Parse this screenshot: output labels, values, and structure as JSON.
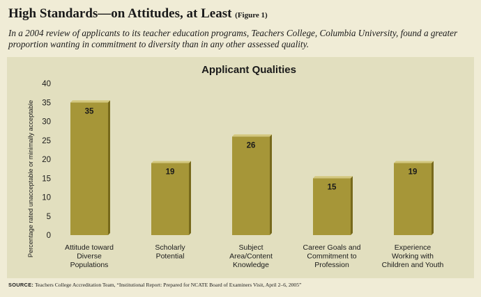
{
  "header": {
    "title": "High Standards—on Attitudes, at Least",
    "figure_label": "(Figure 1)",
    "subtitle": "In a 2004 review of applicants to its teacher education programs, Teachers College, Columbia University, found a greater proportion wanting in commitment to diversity than in any other assessed quality."
  },
  "footer": {
    "source_label": "SOURCE:",
    "source_text": "Teachers College Accreditation Team, “Institutional Report: Prepared for NCATE Board of Examiners Visit, April 2–6, 2005”"
  },
  "colors": {
    "background": "#f0ecd6",
    "panel": "#e2dfbf",
    "bar_front": "#a69638",
    "bar_side": "#77691b",
    "bar_top": "#d3c77e"
  },
  "chart_data": {
    "type": "bar",
    "title": "Applicant Qualities",
    "xlabel": "",
    "ylabel": "Percentage rated unacceptable or minimally acceptable",
    "ylim": [
      0,
      40
    ],
    "yticks": [
      0,
      5,
      10,
      15,
      20,
      25,
      30,
      35,
      40
    ],
    "grid": false,
    "categories": [
      [
        "Attitude toward",
        "Diverse",
        "Populations"
      ],
      [
        "Scholarly",
        "Potential"
      ],
      [
        "Subject",
        "Area/Content",
        "Knowledge"
      ],
      [
        "Career Goals and",
        "Commitment to",
        "Profession"
      ],
      [
        "Experience",
        "Working with",
        "Children and Youth"
      ]
    ],
    "values": [
      35,
      19,
      26,
      15,
      19
    ],
    "data_labels": [
      "35",
      "19",
      "26",
      "15",
      "19"
    ]
  }
}
